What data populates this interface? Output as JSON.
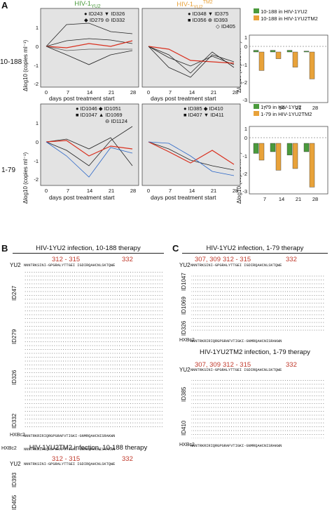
{
  "panel_labels": {
    "a": "A",
    "b": "B",
    "c": "C"
  },
  "row_labels": [
    "10-188",
    "1-79"
  ],
  "col_titles": {
    "yu2": "HIV-1",
    "yu2_sub": "YU2",
    "tm2": "HIV-1",
    "tm2_sub": "YU2",
    "tm2_sup": "TM2"
  },
  "y_axis_label": "Δlog10 (copies ml⁻¹)",
  "x_axis_label": "days post treatment start",
  "x_ticks": [
    "0",
    "7",
    "14",
    "21",
    "28"
  ],
  "y_ticks": [
    "1",
    "0",
    "-1",
    "-2",
    "-3"
  ],
  "legends": {
    "a_top_left": [
      "ID243",
      "ID326",
      "ID279",
      "ID332"
    ],
    "a_top_mid": [
      "ID348",
      "ID375",
      "ID356",
      "ID393",
      "ID405"
    ],
    "a_bot_left": [
      "ID1046",
      "ID1051",
      "ID1047",
      "ID1069",
      "ID1124"
    ],
    "a_bot_mid": [
      "ID385",
      "ID410",
      "ID407",
      "ID411"
    ],
    "a_top_right": [
      "10-188 in HIV-1YU2",
      "10-188 in HIV-1YU2TM2"
    ],
    "a_bot_right": [
      "1-79 in HIV-1YU2",
      "1-79 in HIV-1YU2TM2"
    ]
  },
  "colors": {
    "green": "#4a9a3c",
    "orange": "#e8a23a",
    "red_line": "#d9301f",
    "blue": "#2a66c8",
    "shade": "#e3e3e3"
  },
  "chart_data": [
    {
      "type": "bar",
      "title": "10-188",
      "categories": [
        "7",
        "14",
        "21",
        "28"
      ],
      "series": [
        {
          "name": "10-188 in HIV-1YU2",
          "values": [
            0.1,
            0.1,
            0.1,
            0.05
          ]
        },
        {
          "name": "10-188 in HIV-1YU2TM2",
          "values": [
            -1.1,
            -0.4,
            -0.9,
            -1.6
          ]
        }
      ],
      "ylim": [
        -3,
        1
      ]
    },
    {
      "type": "bar",
      "title": "1-79",
      "categories": [
        "7",
        "14",
        "21",
        "28"
      ],
      "series": [
        {
          "name": "1-79 in HIV-1YU2",
          "values": [
            -0.6,
            -0.5,
            -0.7,
            -0.5
          ]
        },
        {
          "name": "1-79 in HIV-1YU2TM2",
          "values": [
            -1.0,
            -1.6,
            -1.5,
            -2.6
          ]
        }
      ],
      "ylim": [
        -3,
        1
      ]
    }
  ],
  "b": {
    "title1": "HIV-1YU2 infection, 10-188 therapy",
    "title2": "HIV-1YU2TM2 infection, 10-188 therapy",
    "pos1": "312 - 315",
    "pos2": "332",
    "yu2_label": "YU2",
    "hxb_label": "HXBc2",
    "yu2_seq": "NNNTRKSINI-GPGRALYTTGEI IGDIRQAHCNLSKTQWE",
    "hxb_seq": "NNNTRKRIRIQRGPGRAFVTIGKI-GNMRQAHCNISRAKWN",
    "groups": [
      "ID247",
      "ID279",
      "ID326",
      "ID332"
    ],
    "groups2": [
      "ID393",
      "ID405"
    ]
  },
  "c": {
    "title1": "HIV-1YU2 infection, 1-79 therapy",
    "title2": "HIV-1YU2TM2 infection, 1-79 therapy",
    "pos": "307, 309",
    "pos1": "312 - 315",
    "pos2": "332",
    "yu2_label": "YU2",
    "hxb_label": "HXBc2",
    "yu2_seq": "NNNTRKSINI-GPGRALYTTGEI IGDIRQAHCNLSKTQWE",
    "hxb_seq": "NNNTRKRIRIQRGPGRAFVTIGKI-GNMRQAHCNISRAKWN",
    "groups": [
      "ID1047",
      "ID1069",
      "ID326"
    ],
    "groups2": [
      "ID385",
      "ID410"
    ]
  }
}
